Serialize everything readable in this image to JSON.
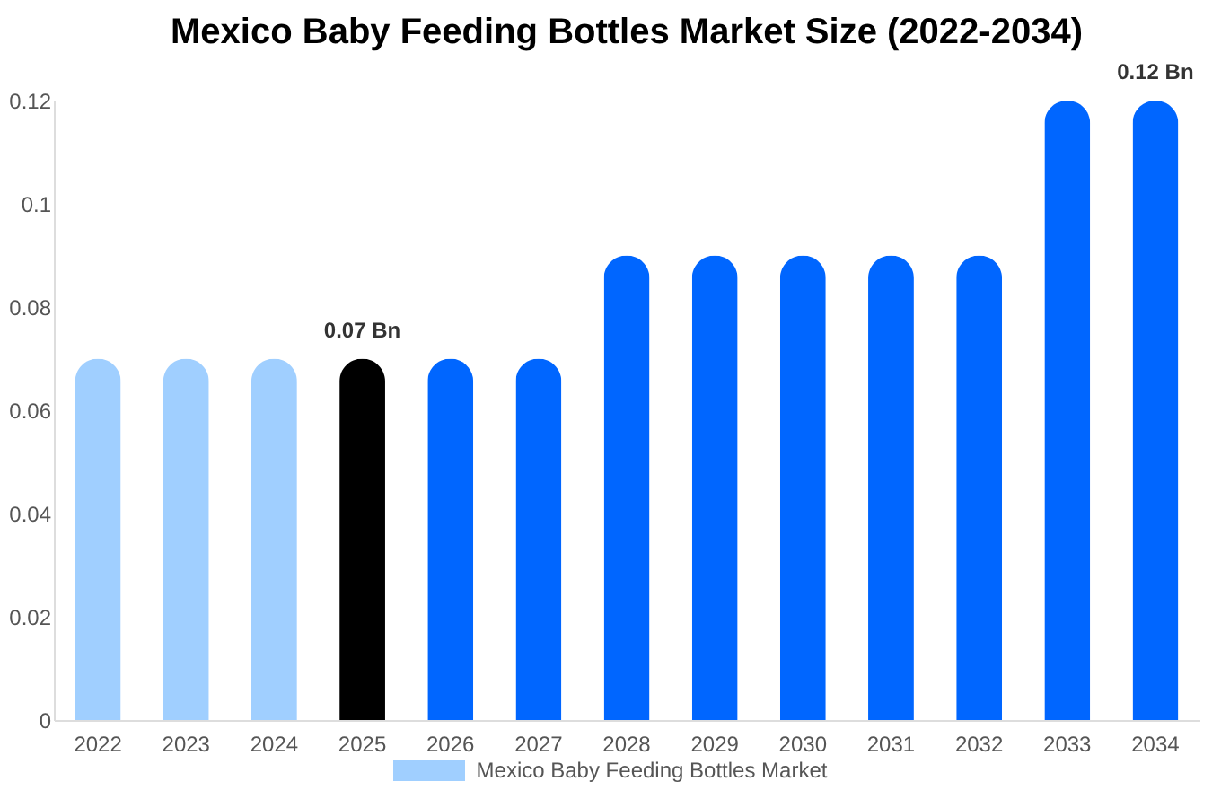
{
  "chart_data": {
    "type": "bar",
    "title": "Mexico Baby Feeding Bottles Market Size (2022-2034)",
    "categories": [
      "2022",
      "2023",
      "2024",
      "2025",
      "2026",
      "2027",
      "2028",
      "2029",
      "2030",
      "2031",
      "2032",
      "2033",
      "2034"
    ],
    "series": [
      {
        "name": "Mexico Baby Feeding Bottles Market",
        "color": "#a0cfff",
        "colors": [
          "#a0cfff",
          "#a0cfff",
          "#a0cfff",
          "#000000",
          "#0066ff",
          "#0066ff",
          "#0066ff",
          "#0066ff",
          "#0066ff",
          "#0066ff",
          "#0066ff",
          "#0066ff",
          "#0066ff"
        ],
        "values": [
          0.07,
          0.07,
          0.07,
          0.07,
          0.07,
          0.07,
          0.09,
          0.09,
          0.09,
          0.09,
          0.09,
          0.12,
          0.12
        ],
        "value_labels": [
          null,
          null,
          null,
          "0.07 Bn",
          null,
          null,
          null,
          null,
          null,
          null,
          null,
          null,
          "0.12 Bn"
        ]
      }
    ],
    "ylim": [
      0,
      0.12
    ],
    "yticks": [
      0,
      0.02,
      0.04,
      0.06,
      0.08,
      0.1,
      0.12
    ],
    "grid": false,
    "legend": "bottom"
  }
}
